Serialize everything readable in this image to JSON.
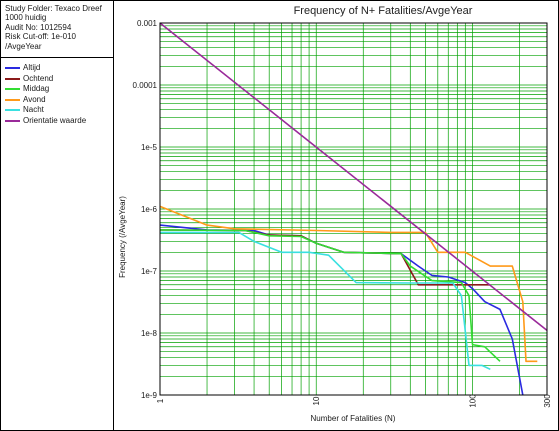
{
  "info": {
    "study_folder": "Study Folder: Texaco Dreef",
    "scenario": "1000 huidig",
    "audit_no": "Audit No: 1012594",
    "risk_cutoff": "Risk Cut-off: 1e-010",
    "unit": "/AvgeYear"
  },
  "chart_data": {
    "type": "line",
    "title": "Frequency of N+ Fatalities/AvgeYear",
    "xlabel": "Number of Fatalities (N)",
    "ylabel": "Frequency (/AvgeYear)",
    "x_scale": "log",
    "y_scale": "log",
    "xlim": [
      1,
      300
    ],
    "ylim": [
      1e-09,
      0.001
    ],
    "x_tick_labels": [
      {
        "value": 1,
        "label": "1"
      },
      {
        "value": 10,
        "label": "10"
      },
      {
        "value": 100,
        "label": "100"
      },
      {
        "value": 300,
        "label": "300"
      }
    ],
    "y_tick_labels": [
      {
        "value": 0.001,
        "label": "0.001"
      },
      {
        "value": 0.0001,
        "label": "0.0001"
      },
      {
        "value": 1e-05,
        "label": "1e-5"
      },
      {
        "value": 1e-06,
        "label": "1e-6"
      },
      {
        "value": 1e-07,
        "label": "1e-7"
      },
      {
        "value": 1e-08,
        "label": "1e-8"
      },
      {
        "value": 1e-09,
        "label": "1e-9"
      }
    ],
    "grid": true,
    "grid_color": "#00a000",
    "legend_position": "left panel",
    "series": [
      {
        "name": "Altijd",
        "color": "#2a2ae0",
        "points": [
          [
            1,
            5.5e-07
          ],
          [
            2,
            4.6e-07
          ],
          [
            4,
            4.5e-07
          ],
          [
            5,
            3.8e-07
          ],
          [
            8,
            3.7e-07
          ],
          [
            10,
            2.8e-07
          ],
          [
            15,
            2e-07
          ],
          [
            35,
            1.9e-07
          ],
          [
            45,
            1.2e-07
          ],
          [
            55,
            8.5e-08
          ],
          [
            70,
            8e-08
          ],
          [
            90,
            6.5e-08
          ],
          [
            100,
            5.2e-08
          ],
          [
            120,
            3.2e-08
          ],
          [
            150,
            2.4e-08
          ],
          [
            180,
            8e-09
          ],
          [
            210,
            1e-09
          ]
        ]
      },
      {
        "name": "Ochtend",
        "color": "#8b1a1a",
        "points": [
          [
            1,
            4.6e-07
          ],
          [
            3.5,
            4.5e-07
          ],
          [
            5,
            3.8e-07
          ],
          [
            8,
            3.7e-07
          ],
          [
            10,
            2.8e-07
          ],
          [
            15,
            2e-07
          ],
          [
            35,
            1.9e-07
          ],
          [
            45,
            6e-08
          ],
          [
            130,
            6e-08
          ]
        ]
      },
      {
        "name": "Middag",
        "color": "#33dd33",
        "points": [
          [
            1,
            4.6e-07
          ],
          [
            3.5,
            4.5e-07
          ],
          [
            5,
            3.7e-07
          ],
          [
            8,
            3.6e-07
          ],
          [
            10,
            2.8e-07
          ],
          [
            15,
            2e-07
          ],
          [
            35,
            1.9e-07
          ],
          [
            40,
            1.2e-07
          ],
          [
            55,
            7e-08
          ],
          [
            85,
            6.5e-08
          ],
          [
            95,
            4e-08
          ],
          [
            100,
            6.5e-09
          ],
          [
            120,
            6e-09
          ],
          [
            150,
            3.5e-09
          ]
        ]
      },
      {
        "name": "Avond",
        "color": "#ff9a1a",
        "points": [
          [
            1,
            1.1e-06
          ],
          [
            2,
            5.5e-07
          ],
          [
            3,
            4.8e-07
          ],
          [
            10,
            4.5e-07
          ],
          [
            30,
            4.2e-07
          ],
          [
            50,
            4.2e-07
          ],
          [
            60,
            2e-07
          ],
          [
            90,
            2e-07
          ],
          [
            130,
            1.2e-07
          ],
          [
            180,
            1.2e-07
          ],
          [
            210,
            3.2e-08
          ],
          [
            220,
            3.5e-09
          ],
          [
            260,
            3.5e-09
          ]
        ]
      },
      {
        "name": "Nacht",
        "color": "#3ae0e0",
        "points": [
          [
            1,
            4.2e-07
          ],
          [
            3.2,
            4.2e-07
          ],
          [
            4,
            3e-07
          ],
          [
            6,
            2e-07
          ],
          [
            9,
            2e-07
          ],
          [
            12,
            1.8e-07
          ],
          [
            18,
            6.5e-08
          ],
          [
            40,
            6.4e-08
          ],
          [
            55,
            6.4e-08
          ],
          [
            75,
            6.4e-08
          ],
          [
            85,
            4e-08
          ],
          [
            95,
            3e-09
          ],
          [
            115,
            3e-09
          ],
          [
            130,
            2.6e-09
          ]
        ]
      },
      {
        "name": "Orientatie waarde",
        "color": "#9a2a9a",
        "points": [
          [
            1,
            0.001
          ],
          [
            300,
            1.1e-08
          ]
        ]
      }
    ]
  }
}
